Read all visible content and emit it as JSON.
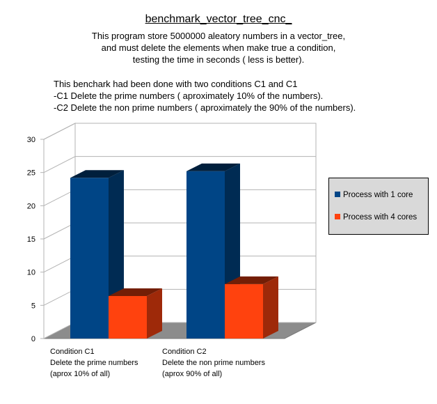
{
  "chart_data": {
    "type": "bar",
    "title": "benchmark_vector_tree_cnc_",
    "description": [
      "This program store 5000000 aleatory numbers in a vector_tree,",
      "and must delete the elements when make true a condition,",
      "testing the time in seconds ( less is better)."
    ],
    "notes": [
      "This benchark had been done with two conditions C1 and C1",
      "-C1 Delete the prime numbers ( aproximately 10% of the numbers).",
      "-C2 Delete the non prime numbers ( aproximately the 90% of the numbers)."
    ],
    "ylabel": "seconds ( less is better)",
    "xlabel": "",
    "ylim": [
      0,
      30
    ],
    "yticks": [
      0,
      5,
      10,
      15,
      20,
      25,
      30
    ],
    "grid": true,
    "legend_position": "right",
    "categories": [
      [
        "Condition C1",
        "Delete the prime numbers",
        "(aprox 10% of all)"
      ],
      [
        "Condition C2",
        "Delete the non prime numbers",
        "(aprox 90% of all)"
      ]
    ],
    "series": [
      {
        "name": "Process with 1 core",
        "values": [
          24.2,
          25.2
        ],
        "color": "#004586"
      },
      {
        "name": "Process with 4 cores",
        "values": [
          6.4,
          8.2
        ],
        "color": "#ff420e"
      }
    ]
  }
}
